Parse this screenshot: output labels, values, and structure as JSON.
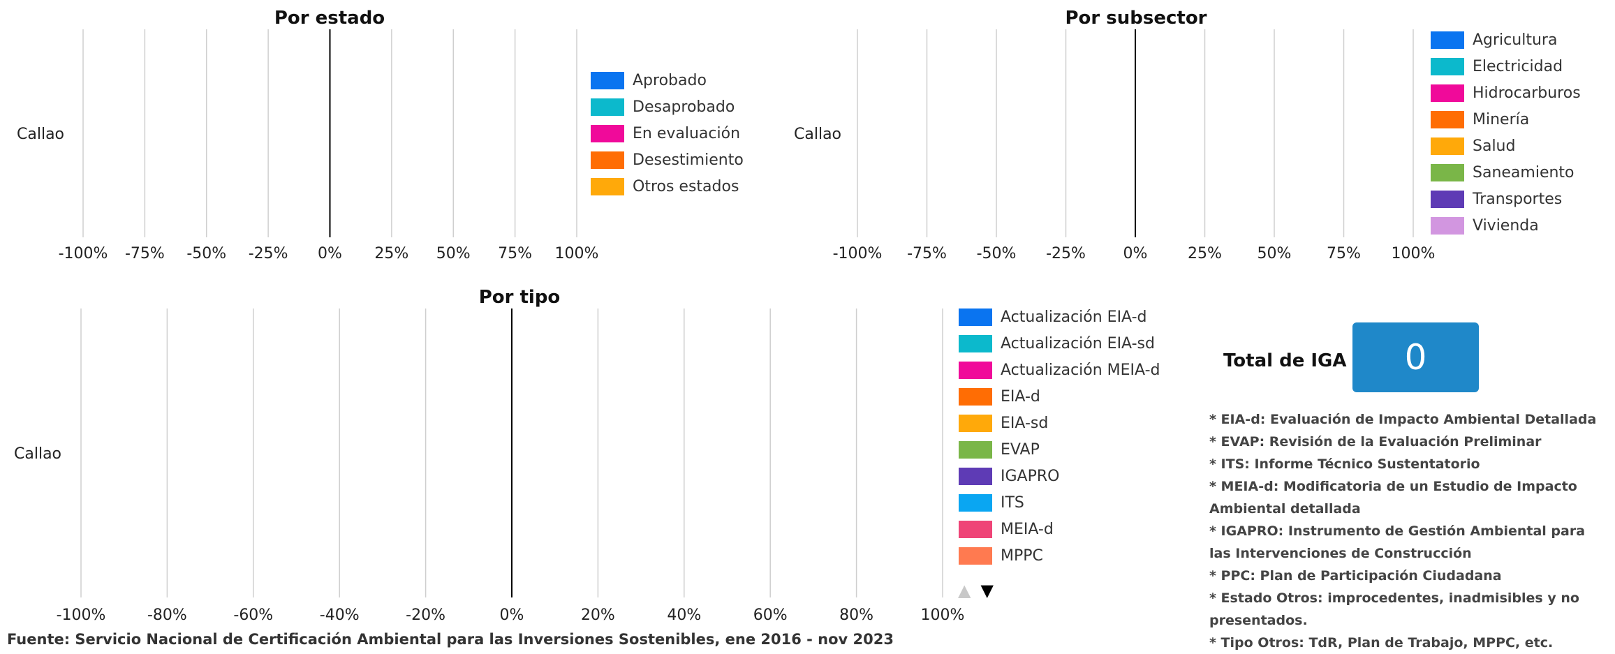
{
  "chart_data": [
    {
      "type": "bar",
      "orientation": "horizontal",
      "title": "Por estado",
      "categories": [
        "Callao"
      ],
      "xlim": [
        -1,
        1
      ],
      "tick_values": [
        -1,
        -0.75,
        -0.5,
        -0.25,
        0,
        0.25,
        0.5,
        0.75,
        1
      ],
      "tick_labels": [
        "-100%",
        "-75%",
        "-50%",
        "-25%",
        "0%",
        "25%",
        "50%",
        "75%",
        "100%"
      ],
      "grid": true,
      "series": [
        {
          "name": "Aprobado",
          "color": "#0a74f0",
          "values": [
            0
          ]
        },
        {
          "name": "Desaprobado",
          "color": "#0cb9cc",
          "values": [
            0
          ]
        },
        {
          "name": "En evaluación",
          "color": "#f00a9a",
          "values": [
            0
          ]
        },
        {
          "name": "Desestimiento",
          "color": "#ff6d04",
          "values": [
            0
          ]
        },
        {
          "name": "Otros estados",
          "color": "#ffa90a",
          "values": [
            0
          ]
        }
      ]
    },
    {
      "type": "bar",
      "orientation": "horizontal",
      "title": "Por subsector",
      "categories": [
        "Callao"
      ],
      "xlim": [
        -1,
        1
      ],
      "tick_values": [
        -1,
        -0.75,
        -0.5,
        -0.25,
        0,
        0.25,
        0.5,
        0.75,
        1
      ],
      "tick_labels": [
        "-100%",
        "-75%",
        "-50%",
        "-25%",
        "0%",
        "25%",
        "50%",
        "75%",
        "100%"
      ],
      "grid": true,
      "series": [
        {
          "name": "Agricultura",
          "color": "#0a74f0",
          "values": [
            0
          ]
        },
        {
          "name": "Electricidad",
          "color": "#0cb9cc",
          "values": [
            0
          ]
        },
        {
          "name": "Hidrocarburos",
          "color": "#f00a9a",
          "values": [
            0
          ]
        },
        {
          "name": "Minería",
          "color": "#ff6d04",
          "values": [
            0
          ]
        },
        {
          "name": "Salud",
          "color": "#ffa90a",
          "values": [
            0
          ]
        },
        {
          "name": "Saneamiento",
          "color": "#7ab648",
          "values": [
            0
          ]
        },
        {
          "name": "Transportes",
          "color": "#5e3bb5",
          "values": [
            0
          ]
        },
        {
          "name": "Vivienda",
          "color": "#d296e0",
          "values": [
            0
          ]
        }
      ]
    },
    {
      "type": "bar",
      "orientation": "horizontal",
      "title": "Por tipo",
      "categories": [
        "Callao"
      ],
      "xlim": [
        -1,
        1
      ],
      "tick_values": [
        -1,
        -0.8,
        -0.6,
        -0.4,
        -0.2,
        0,
        0.2,
        0.4,
        0.6,
        0.8,
        1
      ],
      "tick_labels": [
        "-100%",
        "-80%",
        "-60%",
        "-40%",
        "-20%",
        "0%",
        "20%",
        "40%",
        "60%",
        "80%",
        "100%"
      ],
      "grid": true,
      "series": [
        {
          "name": "Actualización EIA-d",
          "color": "#0a74f0",
          "values": [
            0
          ]
        },
        {
          "name": "Actualización EIA-sd",
          "color": "#0cb9cc",
          "values": [
            0
          ]
        },
        {
          "name": "Actualización MEIA-d",
          "color": "#f00a9a",
          "values": [
            0
          ]
        },
        {
          "name": "EIA-d",
          "color": "#ff6d04",
          "values": [
            0
          ]
        },
        {
          "name": "EIA-sd",
          "color": "#ffa90a",
          "values": [
            0
          ]
        },
        {
          "name": "EVAP",
          "color": "#7ab648",
          "values": [
            0
          ]
        },
        {
          "name": "IGAPRO",
          "color": "#5e3bb5",
          "values": [
            0
          ]
        },
        {
          "name": "ITS",
          "color": "#0aa6f2",
          "values": [
            0
          ]
        },
        {
          "name": "MEIA-d",
          "color": "#ef4477",
          "values": [
            0
          ]
        },
        {
          "name": "MPPC",
          "color": "#ff7a50",
          "values": [
            0
          ]
        }
      ]
    }
  ],
  "legend_pager": {
    "up_icon": "triangle-up-icon",
    "down_icon": "triangle-down-icon",
    "up_glyph": "▲",
    "down_glyph": "▼",
    "up_color": "#c8c8c8",
    "down_color": "#000000"
  },
  "total": {
    "label": "Total de IGA",
    "value": "0",
    "color": "#1f88c9"
  },
  "notes": [
    "* EIA-d: Evaluación de Impacto Ambiental Detallada",
    "* EVAP: Revisión de la Evaluación Preliminar",
    "* ITS: Informe Técnico Sustentatorio",
    "* MEIA-d: Modificatoria de un Estudio de Impacto Ambiental detallada",
    "* IGAPRO: Instrumento de Gestión Ambiental para las Intervenciones de Construcción",
    "* PPC: Plan de Participación Ciudadana",
    "* Estado Otros: improcedentes, inadmisibles y no presentados.",
    "* Tipo Otros: TdR, Plan de Trabajo, MPPC, etc."
  ],
  "source": "Fuente: Servicio Nacional de Certificación Ambiental para las Inversiones Sostenibles, ene 2016 - nov 2023"
}
